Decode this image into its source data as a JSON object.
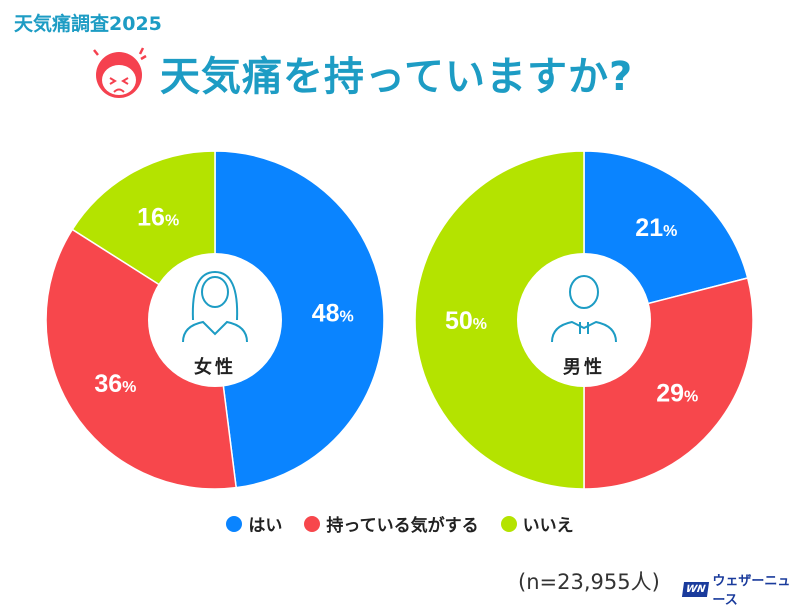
{
  "header": {
    "supertitle": "天気痛調査2025",
    "title": "天気痛を持っていますか?"
  },
  "colors": {
    "yes": "#0a84ff",
    "sometimes": "#f7474c",
    "no": "#b4e300",
    "title": "#1d9cc4"
  },
  "chart_data": [
    {
      "type": "pie",
      "title": "女性",
      "categories": [
        "はい",
        "持っている気がする",
        "いいえ"
      ],
      "values": [
        48,
        36,
        16
      ],
      "unit": "%"
    },
    {
      "type": "pie",
      "title": "男性",
      "categories": [
        "はい",
        "持っている気がする",
        "いいえ"
      ],
      "values": [
        21,
        29,
        50
      ],
      "unit": "%"
    }
  ],
  "legend": [
    "はい",
    "持っている気がする",
    "いいえ"
  ],
  "footer": {
    "n": "(n=23,955人)",
    "logo_mark": "WN",
    "logo_text": "ウェザーニュース"
  }
}
